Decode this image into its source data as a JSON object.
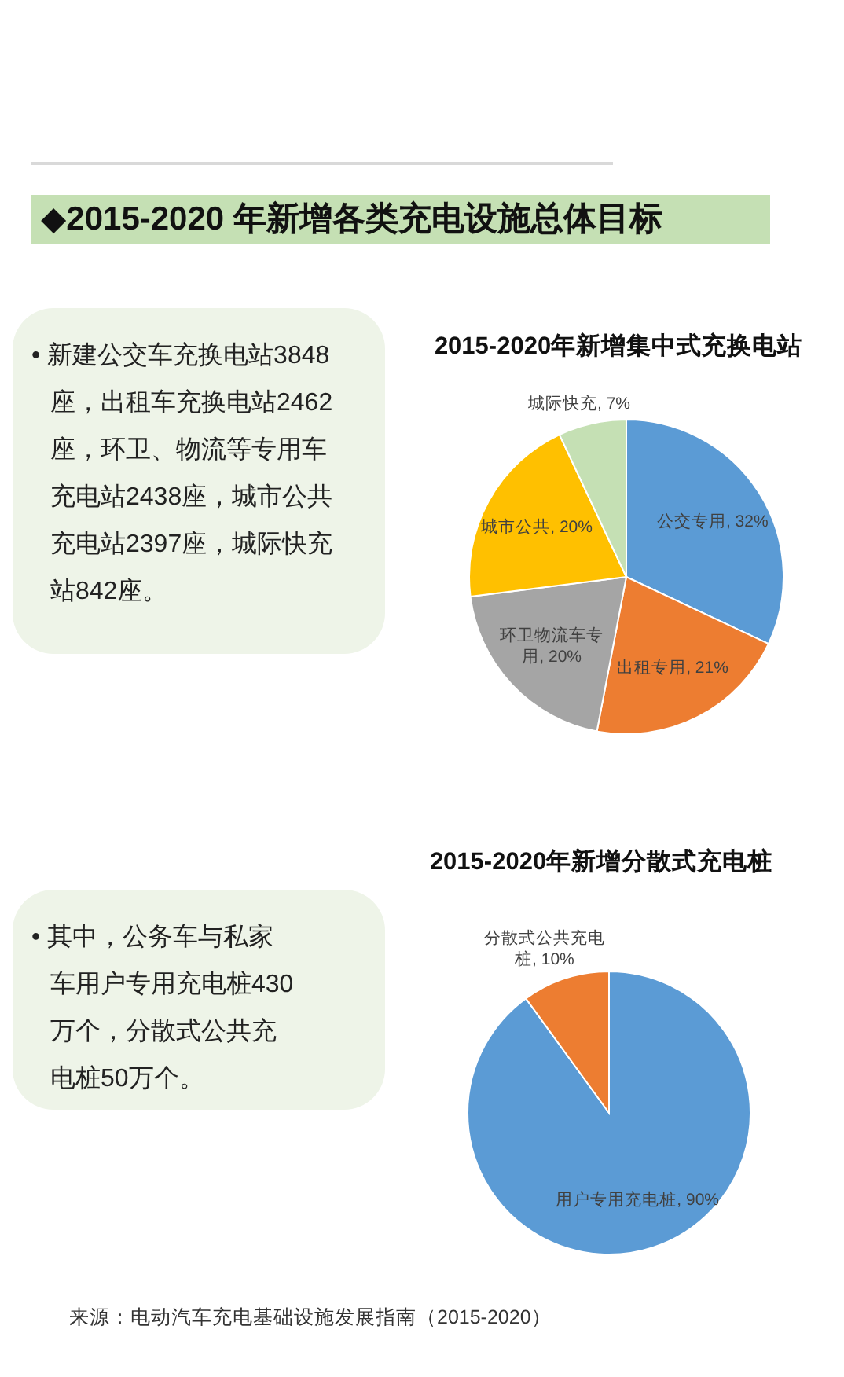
{
  "chart_data": [
    {
      "type": "other",
      "title": "◆2015-2020 年新增各类充电设施总体目标"
    },
    {
      "type": "other",
      "annotations": [
        "• 新建公交车充换电站3848座，出租车充换电站2462座，环卫、物流等专用车充电站2438座，城市公共充电站2397座，城际快充站842座。"
      ]
    },
    {
      "type": "pie",
      "title": "2015-2020年新增集中式充换电站",
      "categories": [
        "公交专用",
        "出租专用",
        "环卫物流车专用",
        "城市公共",
        "城际快充"
      ],
      "values": [
        32,
        21,
        20,
        20,
        7
      ],
      "value_labels": [
        "32%",
        "21%",
        "20%",
        "20%",
        "7%"
      ],
      "colors": [
        "#5b9bd5",
        "#ed7d31",
        "#a5a5a5",
        "#ffc000",
        "#c5e0b4"
      ]
    },
    {
      "type": "other",
      "annotations": [
        "• 其中，公务车与私家车用户专用充电桩430万个，分散式公共充电桩50万个。"
      ]
    },
    {
      "type": "pie",
      "title": "2015-2020年新增分散式充电桩",
      "categories": [
        "用户专用充电桩",
        "分散式公共充电桩"
      ],
      "values": [
        90,
        10
      ],
      "value_labels": [
        "90%",
        "10%"
      ],
      "colors": [
        "#5b9bd5",
        "#ed7d31"
      ]
    },
    {
      "type": "other",
      "annotations": [
        "来源：电动汽车充电基础设施发展指南（2015-2020）"
      ]
    }
  ]
}
